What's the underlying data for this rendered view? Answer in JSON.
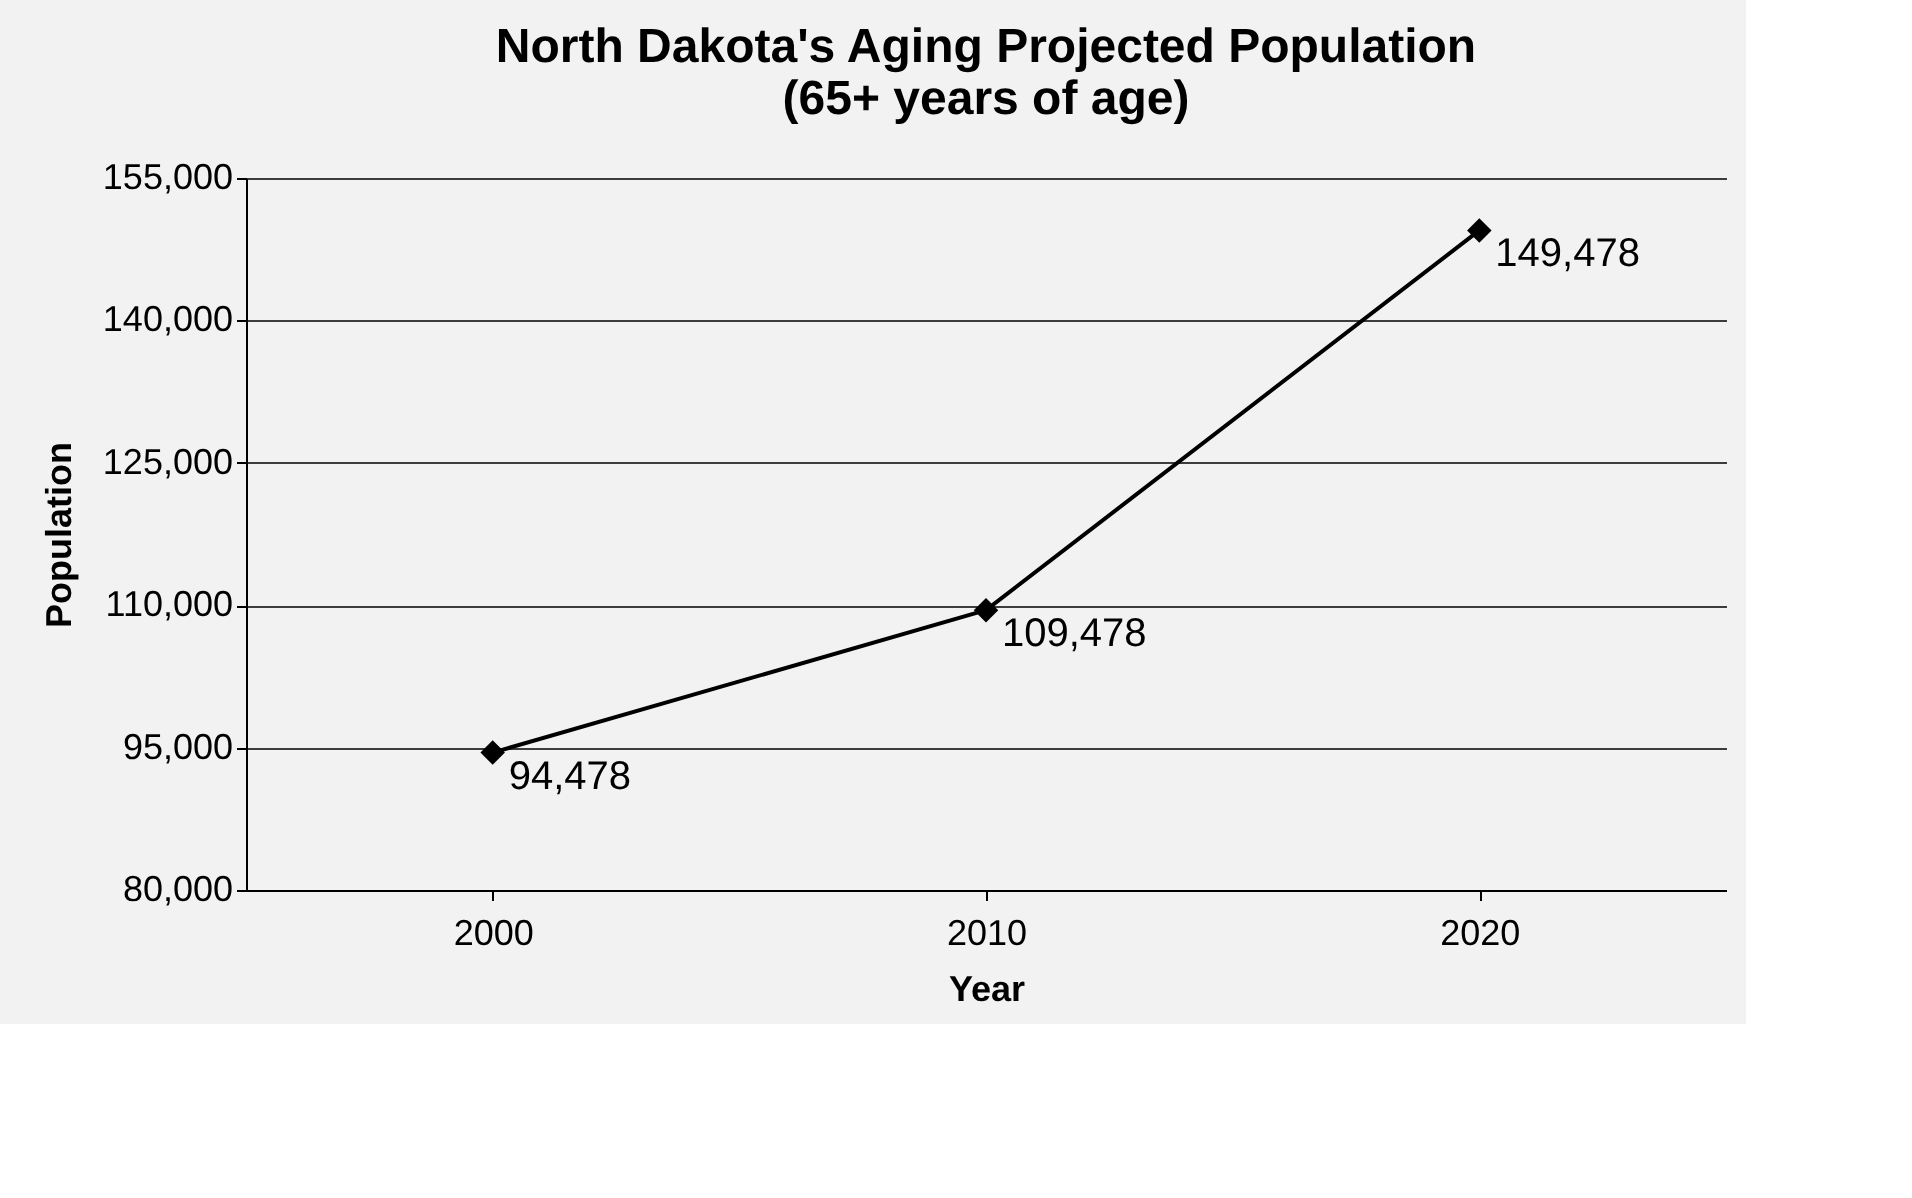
{
  "chart_data": {
    "type": "line",
    "title": "North Dakota's Aging Projected Population\n(65+ years of age)",
    "xlabel": "Year",
    "ylabel": "Population",
    "categories": [
      "2000",
      "2010",
      "2020"
    ],
    "series": [
      {
        "color": "#000000",
        "values": [
          94478,
          109478,
          149478
        ],
        "value_labels": [
          "94,478",
          "109,478",
          "149,478"
        ]
      }
    ],
    "ylim": [
      80000,
      155000
    ],
    "yticks": [
      {
        "value": 80000,
        "label": "80,000"
      },
      {
        "value": 95000,
        "label": "95,000"
      },
      {
        "value": 110000,
        "label": "110,000"
      },
      {
        "value": 125000,
        "label": "125,000"
      },
      {
        "value": 140000,
        "label": "140,000"
      },
      {
        "value": 155000,
        "label": "155,000"
      }
    ],
    "grid": "y",
    "marker": "diamond",
    "line_style": "solid"
  }
}
